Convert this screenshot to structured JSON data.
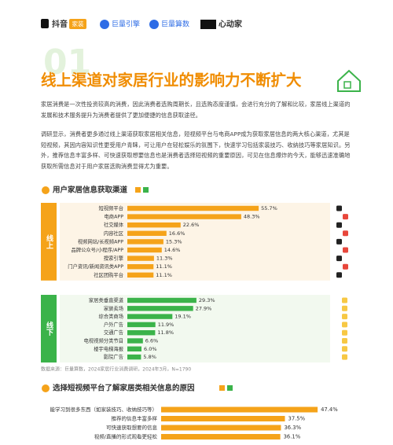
{
  "header": {
    "logos": [
      "抖音",
      "家装",
      "巨量引擎",
      "巨量算数",
      "心动家"
    ]
  },
  "section_number": "01",
  "title": "线上渠道对家居行业的影响力不断扩大",
  "paragraphs": [
    "家居消费是一次性投资较高的消费，因此消费者选购周期长，且选购态度谨慎，会进行充分的了解和比较，家居线上渠道的发展和技术服务提升为消费者提供了更加便捷的信息获取途径。",
    "调研显示，消费者更多通过线上渠道获取家居相关信息，短视频平台与电商APP成为获取家居信息的两大核心渠道，尤其是短视频，其因内容知识性更受用户青睐，可让用户在轻松娱乐的氛围下，快速学习包括家装技巧、收纳技巧等家居知识。另外，推荐信息丰富多样、可快速获取想要信息也是消费者选择短视频的重要原因，可见在信息爆炸的今天，能够迅速准确地获取所需信息对于用户家居选购消费显得尤为重要。"
  ],
  "chart_data": [
    {
      "type": "bar",
      "orientation": "horizontal",
      "title": "用户家居信息获取渠道",
      "groups": [
        {
          "name": "线上",
          "color": "#f5a31a",
          "categories": [
            "短视频平台",
            "电商APP",
            "社交媒体",
            "内容社区",
            "视频网站/长视频APP",
            "品牌公众号/小程序/APP",
            "搜索引擎",
            "门户资讯/新闻资讯类APP",
            "社区团购平台"
          ],
          "values": [
            55.7,
            48.3,
            22.6,
            16.6,
            15.3,
            14.6,
            11.3,
            11.1,
            11.1
          ],
          "value_labels": [
            "55.7%",
            "48.3%",
            "22.6%",
            "16.6%",
            "15.3%",
            "14.6%",
            "11.3%",
            "11.1%",
            "11.1%"
          ]
        },
        {
          "name": "线下",
          "color": "#3bb34a",
          "categories": [
            "家居类垂直渠道",
            "家装卖场",
            "综合类商场",
            "户外广告",
            "交通广告",
            "电视视频分类节目",
            "楼宇电梯海报",
            "影院广告"
          ],
          "values": [
            29.3,
            27.9,
            19.1,
            11.9,
            11.8,
            6.6,
            6.0,
            5.8
          ],
          "value_labels": [
            "29.3%",
            "27.9%",
            "19.1%",
            "11.9%",
            "11.8%",
            "6.6%",
            "6.0%",
            "5.8%"
          ]
        }
      ],
      "source": "数据来源：巨量算数，2024家居行业消费调研，2024年3月，N=1790"
    },
    {
      "type": "bar",
      "orientation": "horizontal",
      "title": "选择短视频平台了解家居类相关信息的原因",
      "color": "#f5a31a",
      "categories": [
        "能学习到很多东西（如家装技巧、收纳技巧等）",
        "推荐的信息丰富多样",
        "可快速获取想要的信息",
        "视频/直播的形式观看更轻松"
      ],
      "values": [
        47.4,
        37.5,
        36.3,
        36.1
      ],
      "value_labels": [
        "47.4%",
        "37.5%",
        "36.3%",
        "36.1%"
      ]
    }
  ]
}
